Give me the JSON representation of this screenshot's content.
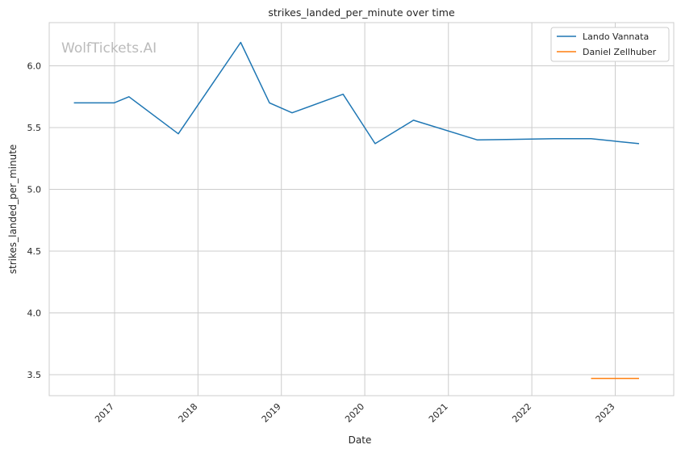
{
  "chart_data": {
    "type": "line",
    "title": "strikes_landed_per_minute over time",
    "xlabel": "Date",
    "ylabel": "strikes_landed_per_minute",
    "watermark": "WolfTickets.AI",
    "x_ticks": [
      "2017",
      "2018",
      "2019",
      "2020",
      "2021",
      "2022",
      "2023"
    ],
    "y_ticks": [
      "3.5",
      "4.0",
      "4.5",
      "5.0",
      "5.5",
      "6.0"
    ],
    "ylim": [
      3.33,
      6.35
    ],
    "xlim": [
      "2016-03-21",
      "2023-09-14"
    ],
    "grid": true,
    "legend_position": "top-right",
    "series": [
      {
        "name": "Lando Vannata",
        "color": "#1f77b4",
        "points": [
          [
            "2016-07-07",
            5.7
          ],
          [
            "2016-12-30",
            5.7
          ],
          [
            "2017-03-05",
            5.75
          ],
          [
            "2017-10-07",
            5.45
          ],
          [
            "2018-07-07",
            6.19
          ],
          [
            "2018-11-10",
            5.7
          ],
          [
            "2019-02-17",
            5.62
          ],
          [
            "2019-09-28",
            5.77
          ],
          [
            "2020-02-15",
            5.37
          ],
          [
            "2020-08-01",
            5.56
          ],
          [
            "2021-05-08",
            5.4
          ],
          [
            "2022-04-09",
            5.41
          ],
          [
            "2022-09-17",
            5.41
          ],
          [
            "2023-04-15",
            5.37
          ]
        ]
      },
      {
        "name": "Daniel Zellhuber",
        "color": "#ff7f0e",
        "points": [
          [
            "2022-09-17",
            3.47
          ],
          [
            "2023-04-15",
            3.47
          ]
        ]
      }
    ]
  }
}
